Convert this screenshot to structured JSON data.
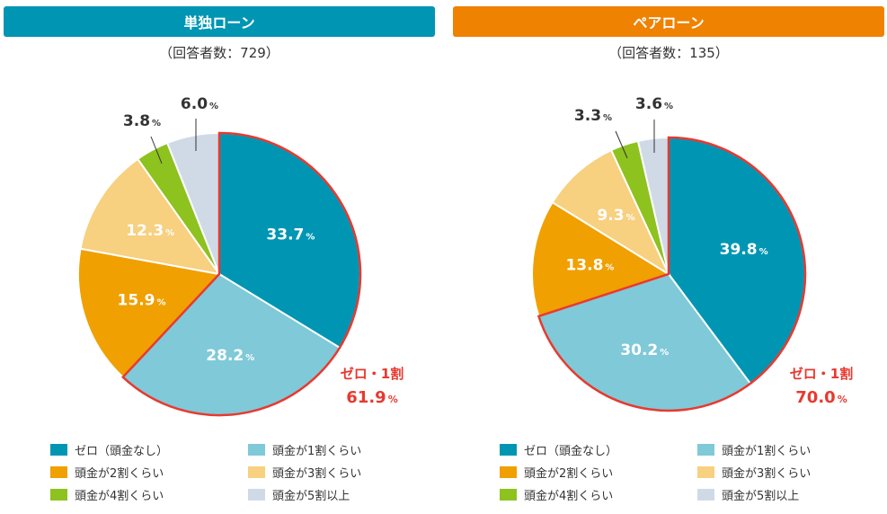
{
  "colors": [
    "#0096b3",
    "#7fc9d8",
    "#f0a000",
    "#f7d080",
    "#8dc21f",
    "#cfdae6"
  ],
  "accent": "#e8392f",
  "legend": [
    "ゼロ（頭金なし）",
    "頭金が1割くらい",
    "頭金が2割くらい",
    "頭金が3割くらい",
    "頭金が4割くらい",
    "頭金が5割以上"
  ],
  "chart_data": [
    {
      "type": "pie",
      "title": "単独ローン",
      "subtitle": "（回答者数：729）",
      "header_color": "#0096b3",
      "categories": [
        "ゼロ（頭金なし）",
        "頭金が1割くらい",
        "頭金が2割くらい",
        "頭金が3割くらい",
        "頭金が4割くらい",
        "頭金が5割以上"
      ],
      "values": [
        33.7,
        28.2,
        15.9,
        12.3,
        3.8,
        6.0
      ],
      "labels": [
        "33.7",
        "28.2",
        "15.9",
        "12.3",
        "3.8",
        "6.0"
      ],
      "callout": {
        "label": "ゼロ・1割",
        "value": "61.9"
      }
    },
    {
      "type": "pie",
      "title": "ペアローン",
      "subtitle": "（回答者数：135）",
      "header_color": "#ef8200",
      "categories": [
        "ゼロ（頭金なし）",
        "頭金が1割くらい",
        "頭金が2割くらい",
        "頭金が3割くらい",
        "頭金が4割くらい",
        "頭金が5割以上"
      ],
      "values": [
        39.8,
        30.2,
        13.8,
        9.3,
        3.3,
        3.6
      ],
      "labels": [
        "39.8",
        "30.2",
        "13.8",
        "9.3",
        "3.3",
        "3.6"
      ],
      "callout": {
        "label": "ゼロ・1割",
        "value": "70.0"
      }
    }
  ],
  "pct": "%"
}
